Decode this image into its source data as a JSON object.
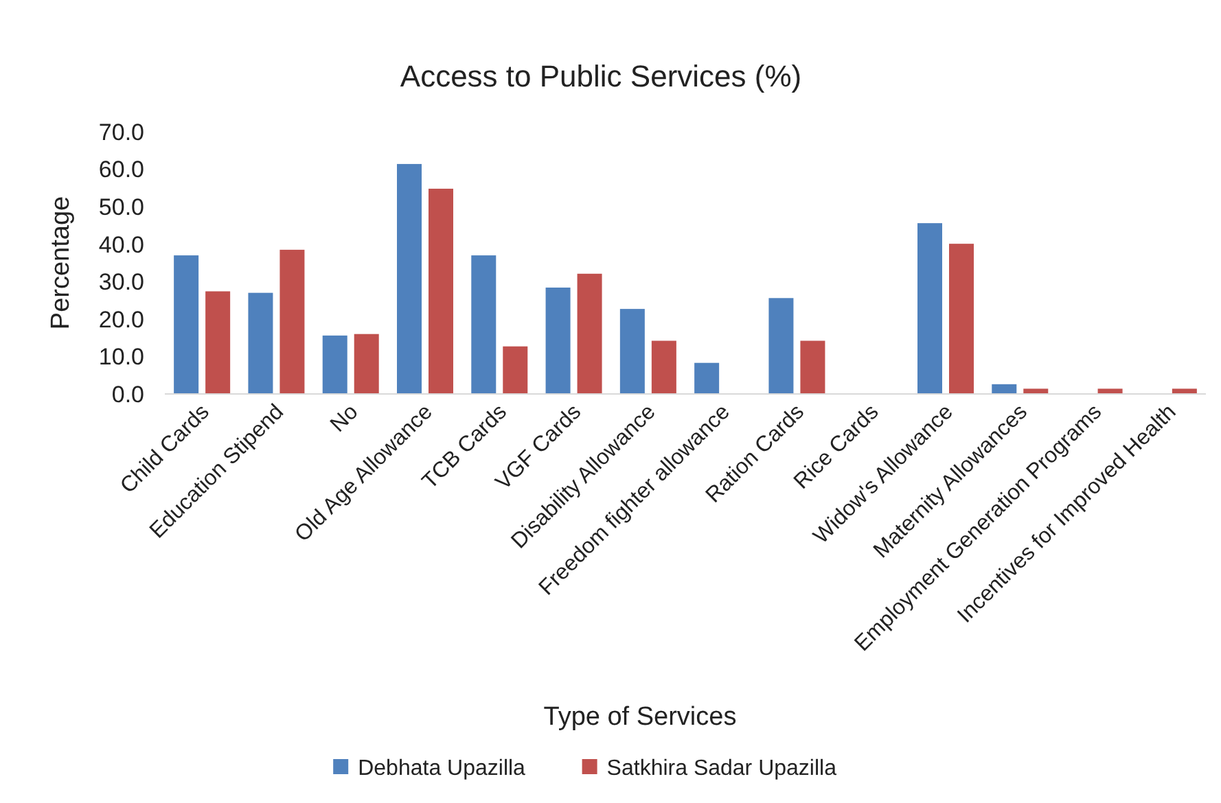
{
  "chart_data": {
    "type": "bar",
    "title": "Access to Public Services (%)",
    "xlabel": "Type of Services",
    "ylabel": "Percentage",
    "categories": [
      "Child Cards",
      "Education Stipend",
      "No",
      "Old Age Allowance",
      "TCB Cards",
      "VGF Cards",
      "Disability Allowance",
      "Freedom fighter allowance",
      "Ration Cards",
      "Rice Cards",
      "Widow's Allowance",
      "Maternity Allowances",
      "Employment Generation Programs",
      "Incentives for Improved Health"
    ],
    "series": [
      {
        "name": "Debhata Upazilla",
        "color": "#4f81bd",
        "values": [
          37.0,
          27.0,
          15.6,
          61.4,
          37.0,
          28.4,
          22.7,
          8.3,
          25.6,
          0,
          45.6,
          2.6,
          0,
          0
        ]
      },
      {
        "name": "Satkhira Sadar Upazilla",
        "color": "#c0504d",
        "values": [
          27.4,
          38.5,
          16.0,
          54.8,
          12.7,
          32.1,
          14.2,
          0,
          14.2,
          0,
          40.1,
          1.4,
          1.4,
          1.4
        ]
      }
    ],
    "ylim": [
      0,
      70
    ],
    "yticks": [
      {
        "value": 0,
        "label": "0.0"
      },
      {
        "value": 10,
        "label": "10.0"
      },
      {
        "value": 20,
        "label": "20.0"
      },
      {
        "value": 30,
        "label": "30.0"
      },
      {
        "value": 40,
        "label": "40.0"
      },
      {
        "value": 50,
        "label": "50.0"
      },
      {
        "value": 60,
        "label": "60.0"
      },
      {
        "value": 70,
        "label": "70.0"
      }
    ],
    "grid": false,
    "legend": "bottom"
  }
}
